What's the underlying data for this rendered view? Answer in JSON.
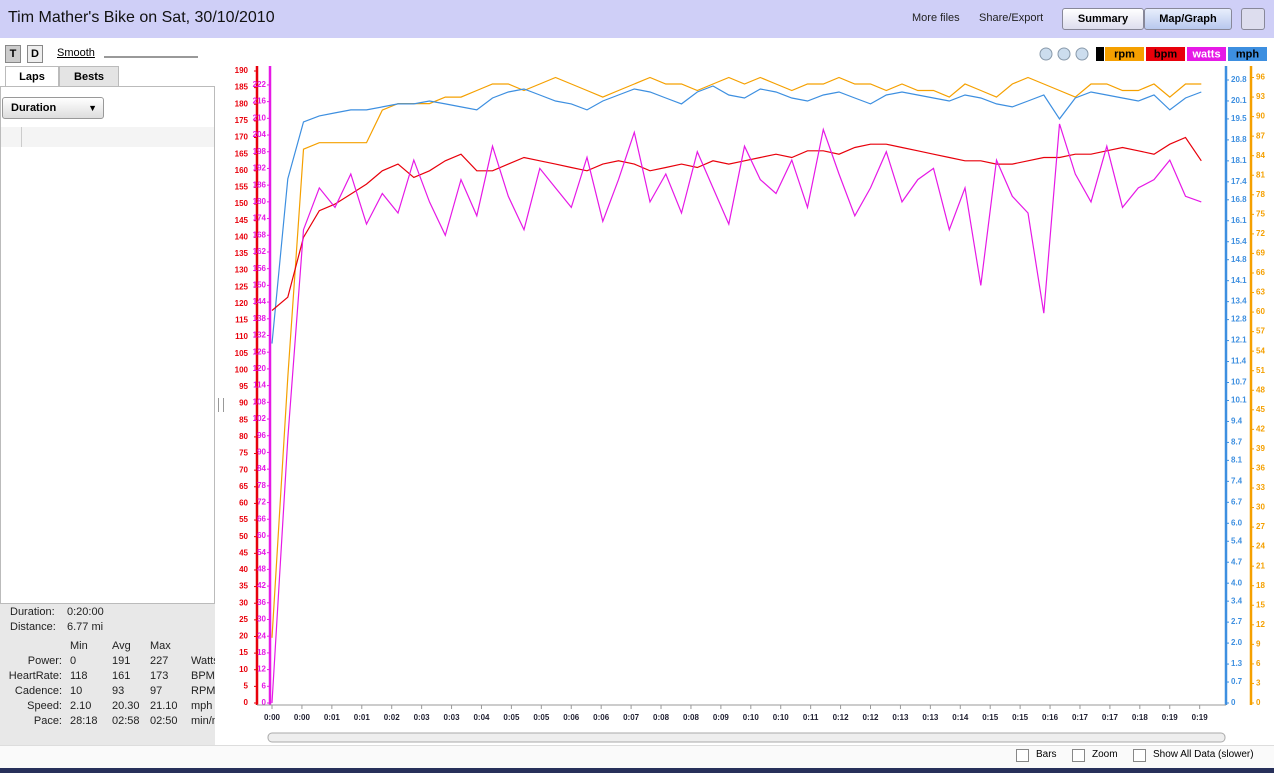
{
  "header": {
    "title": "Tim Mather's Bike on Sat, 30/10/2010",
    "links": [
      "More files",
      "Share/Export"
    ],
    "buttons": [
      "Summary",
      "Map/Graph"
    ]
  },
  "sidebar": {
    "toggles": [
      "T",
      "D"
    ],
    "smooth": "Smooth",
    "tabs": [
      "Laps",
      "Bests"
    ],
    "dropdown": "Duration",
    "summary": [
      {
        "label": "Duration:",
        "value": "0:20:00"
      },
      {
        "label": "Distance:",
        "value": "6.77 mi"
      }
    ],
    "stats": {
      "columns": [
        "Min",
        "Avg",
        "Max"
      ],
      "rows": [
        [
          "Power:",
          "0",
          "191",
          "227",
          "Watts"
        ],
        [
          "HeartRate:",
          "118",
          "161",
          "173",
          "BPM"
        ],
        [
          "Cadence:",
          "10",
          "93",
          "97",
          "RPM"
        ],
        [
          "Speed:",
          "2.10",
          "20.30",
          "21.10",
          "mph"
        ],
        [
          "Pace:",
          "28:18",
          "02:58",
          "02:50",
          "min/mi"
        ]
      ]
    }
  },
  "footer": {
    "checkboxes": [
      "Bars",
      "Zoom",
      "Show All Data (slower)"
    ]
  },
  "chart_data": {
    "type": "line",
    "x": [
      0,
      20,
      40,
      60,
      80,
      100,
      120,
      140,
      160,
      180,
      200,
      220,
      240,
      260,
      280,
      300,
      320,
      340,
      360,
      380,
      400,
      420,
      440,
      460,
      480,
      500,
      520,
      540,
      560,
      580,
      600,
      620,
      640,
      660,
      680,
      700,
      720,
      740,
      760,
      780,
      800,
      820,
      840,
      860,
      880,
      900,
      920,
      940,
      960,
      980,
      1000,
      1020,
      1040,
      1060,
      1080,
      1100,
      1120,
      1140,
      1160,
      1180
    ],
    "xlim": [
      0,
      1200
    ],
    "xticks": [
      {
        "value": 0,
        "label": "0:00"
      },
      {
        "value": 38,
        "label": "0:00"
      },
      {
        "value": 76,
        "label": "0:01"
      },
      {
        "value": 114,
        "label": "0:01"
      },
      {
        "value": 152,
        "label": "0:02"
      },
      {
        "value": 190,
        "label": "0:03"
      },
      {
        "value": 228,
        "label": "0:03"
      },
      {
        "value": 266,
        "label": "0:04"
      },
      {
        "value": 304,
        "label": "0:05"
      },
      {
        "value": 342,
        "label": "0:05"
      },
      {
        "value": 380,
        "label": "0:06"
      },
      {
        "value": 418,
        "label": "0:06"
      },
      {
        "value": 456,
        "label": "0:07"
      },
      {
        "value": 494,
        "label": "0:08"
      },
      {
        "value": 532,
        "label": "0:08"
      },
      {
        "value": 570,
        "label": "0:09"
      },
      {
        "value": 608,
        "label": "0:10"
      },
      {
        "value": 646,
        "label": "0:10"
      },
      {
        "value": 684,
        "label": "0:11"
      },
      {
        "value": 722,
        "label": "0:12"
      },
      {
        "value": 760,
        "label": "0:12"
      },
      {
        "value": 798,
        "label": "0:13"
      },
      {
        "value": 836,
        "label": "0:13"
      },
      {
        "value": 874,
        "label": "0:14"
      },
      {
        "value": 912,
        "label": "0:15"
      },
      {
        "value": 950,
        "label": "0:15"
      },
      {
        "value": 988,
        "label": "0:16"
      },
      {
        "value": 1026,
        "label": "0:17"
      },
      {
        "value": 1064,
        "label": "0:17"
      },
      {
        "value": 1102,
        "label": "0:18"
      },
      {
        "value": 1140,
        "label": "0:19"
      },
      {
        "value": 1178,
        "label": "0:19"
      }
    ],
    "ylim": [
      0,
      190
    ],
    "yticks": [
      0,
      5,
      10,
      15,
      20,
      25,
      30,
      35,
      40,
      45,
      50,
      55,
      60,
      65,
      70,
      75,
      80,
      85,
      90,
      95,
      100,
      105,
      110,
      115,
      120,
      125,
      130,
      135,
      140,
      145,
      150,
      155,
      160,
      165,
      170,
      175,
      180,
      185,
      190
    ],
    "y2lim": [
      0,
      227
    ],
    "y2ticks": [
      0,
      6,
      12,
      18,
      24,
      30,
      36,
      42,
      48,
      54,
      60,
      66,
      72,
      78,
      84,
      90,
      96,
      102,
      108,
      114,
      120,
      126,
      132,
      138,
      144,
      150,
      156,
      162,
      168,
      174,
      180,
      186,
      192,
      198,
      204,
      210,
      216,
      222
    ],
    "y3lim": [
      0,
      21.1
    ],
    "y3ticks": [
      0,
      0.7,
      1.3,
      {
        "value": 2,
        "label": "2.0"
      },
      2.7,
      3.4,
      {
        "value": 4,
        "label": "4.0"
      },
      4.7,
      5.4,
      {
        "value": 6,
        "label": "6.0"
      },
      6.7,
      7.4,
      8.1,
      8.7,
      9.4,
      10.1,
      10.7,
      11.4,
      12.1,
      12.8,
      13.4,
      14.1,
      14.8,
      15.4,
      16.1,
      16.8,
      17.4,
      18.1,
      18.8,
      19.5,
      20.1,
      20.8
    ],
    "y4lim": [
      0,
      97
    ],
    "y4ticks": [
      0,
      3,
      6,
      9,
      12,
      15,
      18,
      21,
      24,
      27,
      30,
      33,
      36,
      39,
      42,
      45,
      48,
      51,
      54,
      57,
      60,
      63,
      66,
      69,
      72,
      75,
      78,
      81,
      84,
      87,
      90,
      93,
      96
    ],
    "series": [
      {
        "name": "rpm",
        "color": "#f5a000",
        "axis": "y4",
        "values": [
          10,
          50,
          85,
          86,
          86,
          86,
          86,
          91,
          92,
          92,
          92,
          93,
          93,
          94,
          95,
          95,
          94,
          95,
          96,
          95,
          94,
          93,
          94,
          95,
          96,
          95,
          95,
          94,
          95,
          96,
          95,
          96,
          95,
          94,
          95,
          95,
          96,
          95,
          95,
          94,
          95,
          94,
          94,
          93,
          95,
          94,
          93,
          95,
          96,
          95,
          94,
          93,
          95,
          95,
          94,
          94,
          95,
          93,
          95,
          95
        ]
      },
      {
        "name": "bpm",
        "color": "#e8000b",
        "axis": "y",
        "values": [
          118,
          122,
          140,
          148,
          150,
          153,
          156,
          160,
          162,
          158,
          160,
          163,
          165,
          160,
          160,
          162,
          164,
          163,
          162,
          161,
          160,
          162,
          163,
          162,
          160,
          161,
          162,
          161,
          163,
          162,
          163,
          164,
          165,
          164,
          166,
          166,
          165,
          167,
          168,
          168,
          167,
          166,
          165,
          164,
          163,
          163,
          162,
          162,
          163,
          164,
          164,
          165,
          165,
          166,
          167,
          166,
          165,
          168,
          170,
          163
        ]
      },
      {
        "name": "watts",
        "color": "#e619e6",
        "axis": "y2",
        "values": [
          0,
          95,
          170,
          185,
          178,
          190,
          172,
          183,
          176,
          195,
          180,
          168,
          188,
          175,
          200,
          182,
          170,
          192,
          185,
          178,
          196,
          173,
          188,
          205,
          180,
          190,
          176,
          198,
          185,
          172,
          200,
          188,
          183,
          195,
          178,
          206,
          190,
          175,
          185,
          198,
          180,
          188,
          192,
          170,
          185,
          150,
          195,
          182,
          176,
          140,
          208,
          190,
          180,
          200,
          178,
          185,
          188,
          195,
          182,
          180
        ]
      },
      {
        "name": "mph",
        "color": "#3d8fe0",
        "axis": "y3",
        "values": [
          12.0,
          17.5,
          19.4,
          19.6,
          19.7,
          19.8,
          19.8,
          19.9,
          20.0,
          20.0,
          20.1,
          20.0,
          19.9,
          19.8,
          20.2,
          20.4,
          20.5,
          20.3,
          20.1,
          20.0,
          19.8,
          20.1,
          20.3,
          20.5,
          20.4,
          20.2,
          20.0,
          20.4,
          20.6,
          20.3,
          20.2,
          20.5,
          20.4,
          20.2,
          20.1,
          20.3,
          20.4,
          20.2,
          20.0,
          20.3,
          20.4,
          20.3,
          20.2,
          20.1,
          20.3,
          20.2,
          20.0,
          19.9,
          20.1,
          20.3,
          19.5,
          20.2,
          20.4,
          20.3,
          20.2,
          20.1,
          20.3,
          19.8,
          20.2,
          20.4
        ]
      }
    ]
  }
}
